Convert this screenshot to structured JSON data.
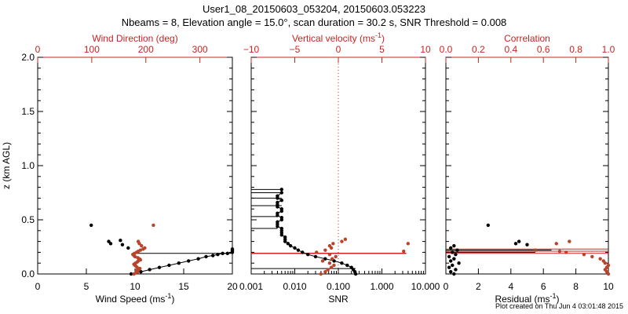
{
  "title_line1": "User1_08_20150603_053204, 20150603.053223",
  "title_line2": "Nbeams = 8, Elevation angle = 15.0°, scan duration = 30.2 s, SNR Threshold = 0.008",
  "footer": "Plot created on Thu Jun  4 03:01:48 2015",
  "colors": {
    "axis": "#000000",
    "top_axis": "#cc2222",
    "wind_dir": "#b8442a",
    "black_points": "#000000"
  },
  "chart_data": [
    {
      "id": "panel1",
      "type": "scatter",
      "ylabel": "z (km AGL)",
      "ylim": [
        0,
        2.0
      ],
      "yticks": [
        {
          "v": 0.0,
          "label": "0.0"
        },
        {
          "v": 0.5,
          "label": "0.5"
        },
        {
          "v": 1.0,
          "label": "1.0"
        },
        {
          "v": 1.5,
          "label": "1.5"
        },
        {
          "v": 2.0,
          "label": "2.0"
        }
      ],
      "bottom_axis": {
        "label_pre": "Wind Speed (ms",
        "label_sup": "-1",
        "label_post": ")",
        "lim": [
          0,
          20
        ],
        "scale": "linear",
        "ticks": [
          {
            "v": 0,
            "label": "0"
          },
          {
            "v": 5,
            "label": "5"
          },
          {
            "v": 10,
            "label": "10"
          },
          {
            "v": 15,
            "label": "15"
          },
          {
            "v": 20,
            "label": "20"
          }
        ]
      },
      "top_axis": {
        "label_pre": "Wind Direction (deg)",
        "label_sup": "",
        "label_post": "",
        "lim": [
          0,
          360
        ],
        "scale": "linear",
        "ticks": [
          {
            "v": 0,
            "label": "0"
          },
          {
            "v": 100,
            "label": "100"
          },
          {
            "v": 200,
            "label": "200"
          },
          {
            "v": 300,
            "label": "300"
          }
        ]
      },
      "series": [
        {
          "name": "Wind Speed",
          "axis": "bottom",
          "color": "#000000",
          "style": "connected",
          "x": [
            9.6,
            10.6,
            11.5,
            12.5,
            13.5,
            14.5,
            15.5,
            16.5,
            17.3,
            18.0,
            18.5,
            19.0,
            19.5,
            20.0,
            20.0,
            20.0,
            20.0
          ],
          "y": [
            0.0,
            0.02,
            0.04,
            0.06,
            0.08,
            0.1,
            0.12,
            0.14,
            0.16,
            0.17,
            0.18,
            0.19,
            0.19,
            0.2,
            0.21,
            0.22,
            0.23
          ]
        },
        {
          "name": "Wind Speed (outliers)",
          "axis": "bottom",
          "color": "#000000",
          "style": "points",
          "x": [
            5.5,
            7.3,
            7.5,
            8.5,
            8.7,
            9.3
          ],
          "y": [
            0.45,
            0.3,
            0.28,
            0.31,
            0.27,
            0.24
          ]
        },
        {
          "name": "Wind Direction",
          "axis": "top",
          "color": "#b8442a",
          "style": "points",
          "x": [
            178,
            182,
            185,
            183,
            187,
            189,
            184,
            182,
            180,
            178,
            181,
            184,
            186,
            190,
            188,
            185,
            180,
            178,
            176,
            179,
            183,
            186,
            190,
            195,
            198,
            192,
            188,
            186,
            214
          ],
          "y": [
            0.0,
            0.01,
            0.02,
            0.03,
            0.04,
            0.05,
            0.06,
            0.07,
            0.08,
            0.09,
            0.1,
            0.11,
            0.12,
            0.13,
            0.14,
            0.15,
            0.16,
            0.17,
            0.18,
            0.19,
            0.2,
            0.21,
            0.22,
            0.23,
            0.24,
            0.26,
            0.28,
            0.3,
            0.45
          ]
        }
      ],
      "hlines": [
        {
          "x_from": 10.0,
          "x_to": 20.0,
          "y": 0.19,
          "axis": "bottom",
          "color": "#000000"
        }
      ]
    },
    {
      "id": "panel2",
      "type": "scatter",
      "ylim": [
        0,
        2.0
      ],
      "bottom_axis": {
        "label_pre": "SNR",
        "label_sup": "",
        "label_post": "",
        "lim": [
          0.001,
          10
        ],
        "scale": "log",
        "ticks": [
          {
            "v": 0.001,
            "label": "0.001"
          },
          {
            "v": 0.01,
            "label": "0.010"
          },
          {
            "v": 0.1,
            "label": "0.100"
          },
          {
            "v": 1,
            "label": "1.000"
          },
          {
            "v": 10,
            "label": "10.000"
          }
        ]
      },
      "top_axis": {
        "label_pre": "Vertical velocity (ms",
        "label_sup": "-1",
        "label_post": ")",
        "lim": [
          -10,
          10
        ],
        "scale": "linear",
        "ticks": [
          {
            "v": -10,
            "label": "−10"
          },
          {
            "v": -5,
            "label": "−5"
          },
          {
            "v": 0,
            "label": "0"
          },
          {
            "v": 5,
            "label": "5"
          },
          {
            "v": 10,
            "label": "10"
          }
        ]
      },
      "vline_top": {
        "v": 0,
        "style": "dotted",
        "color": "#cc2222"
      },
      "series": [
        {
          "name": "SNR",
          "axis": "bottom",
          "color": "#000000",
          "style": "connected",
          "x": [
            0.25,
            0.24,
            0.22,
            0.2,
            0.16,
            0.12,
            0.08,
            0.05,
            0.03,
            0.02,
            0.015,
            0.012,
            0.01,
            0.008,
            0.007,
            0.006,
            0.006,
            0.006,
            0.005,
            0.005,
            0.005,
            0.005,
            0.004,
            0.004,
            0.004,
            0.005,
            0.005,
            0.004,
            0.004,
            0.005,
            0.005,
            0.004,
            0.004,
            0.004,
            0.005,
            0.004,
            0.004,
            0.005,
            0.005
          ],
          "y": [
            0.0,
            0.02,
            0.04,
            0.06,
            0.08,
            0.1,
            0.12,
            0.14,
            0.16,
            0.18,
            0.2,
            0.22,
            0.24,
            0.26,
            0.28,
            0.3,
            0.32,
            0.34,
            0.36,
            0.38,
            0.4,
            0.42,
            0.44,
            0.46,
            0.48,
            0.5,
            0.52,
            0.54,
            0.56,
            0.58,
            0.6,
            0.62,
            0.64,
            0.66,
            0.68,
            0.7,
            0.72,
            0.75,
            0.78
          ]
        },
        {
          "name": "Vertical velocity",
          "axis": "top",
          "color": "#b8442a",
          "style": "points",
          "x": [
            -2.0,
            -1.5,
            -1.2,
            -0.8,
            -0.5,
            -1.0,
            -1.8,
            -0.7,
            -0.3,
            -1.0,
            -2.5,
            -1.5,
            -0.8,
            7.5,
            8.0,
            -1.0,
            -0.6,
            0.4,
            0.8
          ],
          "y": [
            0.0,
            0.02,
            0.04,
            0.06,
            0.08,
            0.1,
            0.12,
            0.14,
            0.16,
            0.18,
            0.2,
            0.22,
            0.24,
            0.21,
            0.28,
            0.26,
            0.28,
            0.3,
            0.32
          ]
        }
      ],
      "hlines_bottom": [
        {
          "x_from": 0.001,
          "x_to": 0.25,
          "y": 0.05
        },
        {
          "x_from": 0.001,
          "x_to": 0.004,
          "y": 0.42
        },
        {
          "x_from": 0.001,
          "x_to": 0.004,
          "y": 0.53
        },
        {
          "x_from": 0.001,
          "x_to": 0.005,
          "y": 0.63
        },
        {
          "x_from": 0.001,
          "x_to": 0.005,
          "y": 0.7
        },
        {
          "x_from": 0.001,
          "x_to": 0.005,
          "y": 0.75
        },
        {
          "x_from": 0.001,
          "x_to": 0.005,
          "y": 0.78
        }
      ],
      "hlines_top": [
        {
          "x_from": -10,
          "x_to": 7.8,
          "y": 0.19,
          "color": "#cc2222"
        }
      ]
    },
    {
      "id": "panel3",
      "type": "scatter",
      "ylim": [
        0,
        2.0
      ],
      "bottom_axis": {
        "label_pre": "Residual (ms",
        "label_sup": "-1",
        "label_post": ")",
        "lim": [
          0,
          10
        ],
        "scale": "linear",
        "ticks": [
          {
            "v": 0,
            "label": "0"
          },
          {
            "v": 2,
            "label": "2"
          },
          {
            "v": 4,
            "label": "4"
          },
          {
            "v": 6,
            "label": "6"
          },
          {
            "v": 8,
            "label": "8"
          },
          {
            "v": 10,
            "label": "10"
          }
        ]
      },
      "top_axis": {
        "label_pre": "Correlation",
        "label_sup": "",
        "label_post": "",
        "lim": [
          0,
          1.0
        ],
        "scale": "linear",
        "ticks": [
          {
            "v": 0,
            "label": "0.0"
          },
          {
            "v": 0.2,
            "label": "0.2"
          },
          {
            "v": 0.4,
            "label": "0.4"
          },
          {
            "v": 0.6,
            "label": "0.6"
          },
          {
            "v": 0.8,
            "label": "0.8"
          },
          {
            "v": 1.0,
            "label": "1.0"
          }
        ]
      },
      "series": [
        {
          "name": "Residual",
          "axis": "bottom",
          "color": "#000000",
          "style": "points",
          "x": [
            0.5,
            0.3,
            0.6,
            0.2,
            0.4,
            0.8,
            0.3,
            0.5,
            0.2,
            0.6,
            0.4,
            0.7,
            0.3,
            0.5,
            2.6,
            4.3,
            4.5,
            5.0
          ],
          "y": [
            0.0,
            0.02,
            0.04,
            0.06,
            0.08,
            0.1,
            0.12,
            0.14,
            0.16,
            0.18,
            0.2,
            0.22,
            0.24,
            0.26,
            0.45,
            0.28,
            0.3,
            0.27
          ]
        },
        {
          "name": "Correlation",
          "axis": "top",
          "color": "#b8442a",
          "style": "points",
          "x": [
            1.0,
            0.99,
            0.98,
            0.99,
            1.0,
            0.98,
            0.97,
            0.95,
            0.9,
            0.85,
            0.74,
            0.7,
            0.76,
            0.68,
            0.55
          ],
          "y": [
            0.0,
            0.02,
            0.04,
            0.06,
            0.08,
            0.1,
            0.12,
            0.14,
            0.16,
            0.18,
            0.2,
            0.21,
            0.3,
            0.28,
            0.22
          ]
        }
      ],
      "hlines": [
        {
          "x_from": 0.0,
          "x_to": 10.0,
          "y": 0.19,
          "axis": "bottom",
          "color": "#cc2222"
        },
        {
          "x_from": 0.0,
          "x_to": 10.0,
          "y": 0.21,
          "axis": "bottom",
          "color": "#cc2222"
        },
        {
          "x_from": 0.0,
          "x_to": 10.0,
          "y": 0.23,
          "axis": "bottom",
          "color": "#cc2222"
        },
        {
          "x_from": 0.0,
          "x_to": 6.5,
          "y": 0.22,
          "axis": "bottom",
          "color": "#000000"
        },
        {
          "x_from": 0.0,
          "x_to": 5.5,
          "y": 0.2,
          "axis": "bottom",
          "color": "#000000"
        }
      ]
    }
  ]
}
